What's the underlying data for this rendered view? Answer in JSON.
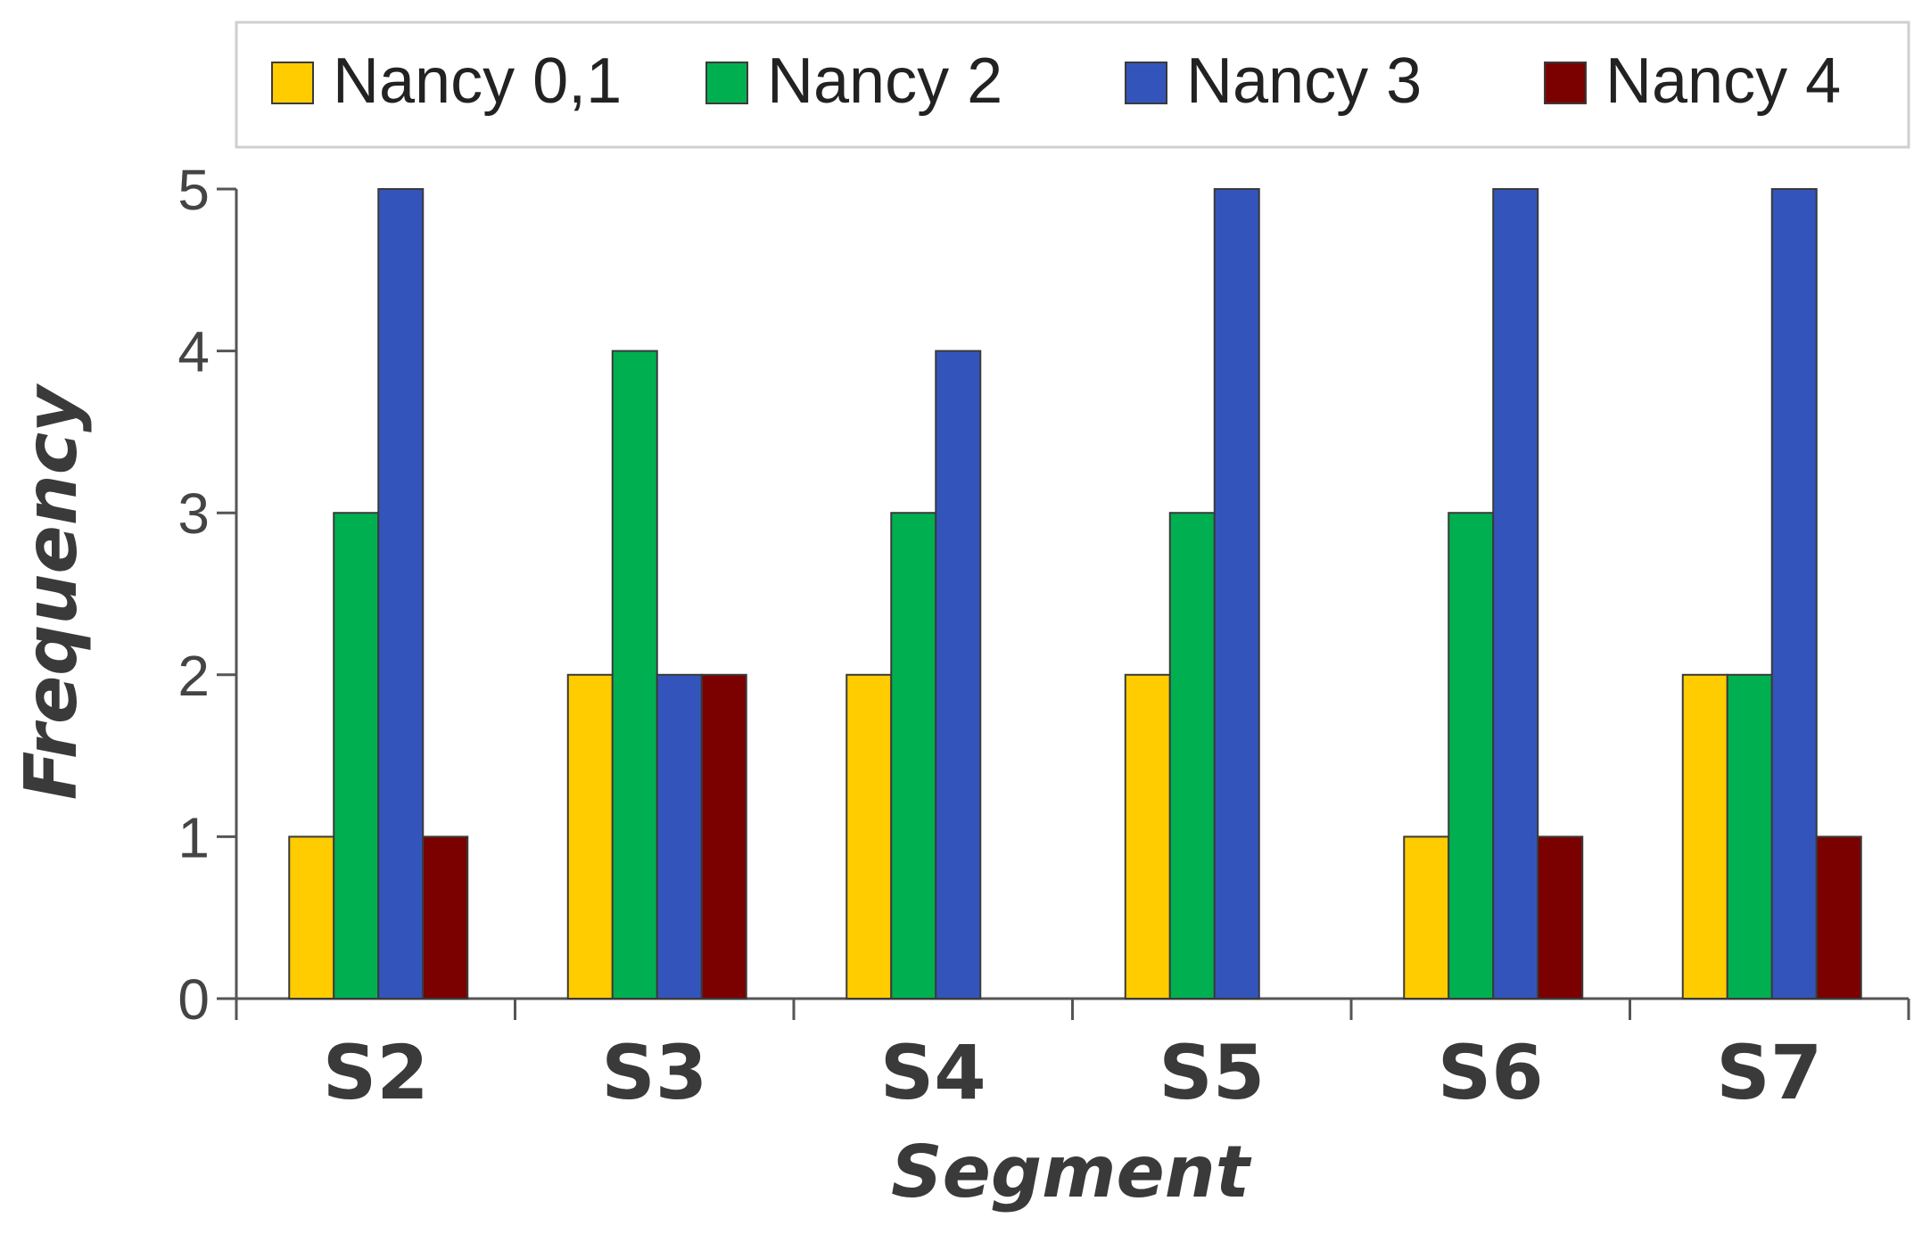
{
  "chart_data": {
    "type": "bar",
    "title": "",
    "xlabel": "Segment",
    "ylabel": "Frequency",
    "ylim": [
      0,
      5
    ],
    "yticks": [
      0,
      1,
      2,
      3,
      4,
      5
    ],
    "grid": false,
    "legend_position": "top",
    "categories": [
      "S2",
      "S3",
      "S4",
      "S5",
      "S6",
      "S7"
    ],
    "series": [
      {
        "name": "Nancy 0,1",
        "color": "#FFCC00",
        "values": [
          1,
          2,
          2,
          2,
          1,
          2
        ]
      },
      {
        "name": "Nancy 2",
        "color": "#00B050",
        "values": [
          3,
          4,
          3,
          3,
          3,
          2
        ]
      },
      {
        "name": "Nancy 3",
        "color": "#3355BB",
        "values": [
          5,
          2,
          4,
          5,
          5,
          5
        ]
      },
      {
        "name": "Nancy 4",
        "color": "#7B0000",
        "values": [
          1,
          2,
          0,
          0,
          1,
          1
        ]
      }
    ]
  }
}
